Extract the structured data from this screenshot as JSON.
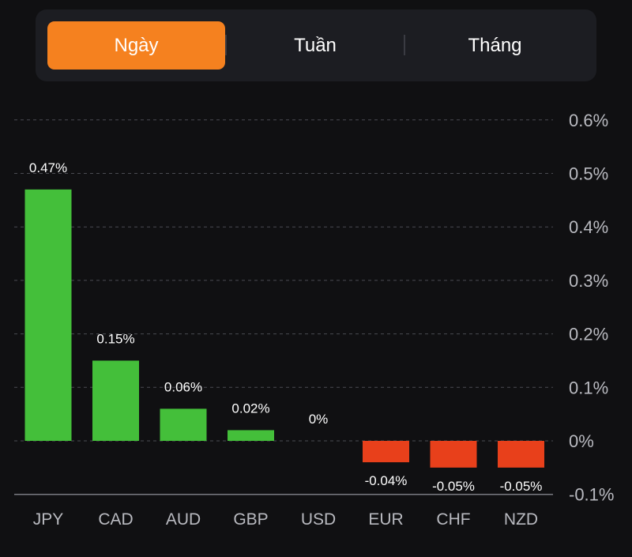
{
  "period_tabs": [
    {
      "label": "Ngày",
      "active": true
    },
    {
      "label": "Tuần",
      "active": false
    },
    {
      "label": "Tháng",
      "active": false
    }
  ],
  "colors": {
    "accent": "#f5811f",
    "positive": "#44bf3a",
    "negative": "#e8401b",
    "grid": "#4a4b52",
    "axis_text": "#b9bac0"
  },
  "chart_data": {
    "type": "bar",
    "categories": [
      "JPY",
      "CAD",
      "AUD",
      "GBP",
      "USD",
      "EUR",
      "CHF",
      "NZD"
    ],
    "values": [
      0.47,
      0.15,
      0.06,
      0.02,
      0,
      -0.04,
      -0.05,
      -0.05
    ],
    "value_labels": [
      "0.47%",
      "0.15%",
      "0.06%",
      "0.02%",
      "0%",
      "-0.04%",
      "-0.05%",
      "-0.05%"
    ],
    "y_ticks": [
      0.6,
      0.5,
      0.4,
      0.3,
      0.2,
      0.1,
      0,
      -0.1
    ],
    "y_tick_labels": [
      "0.6%",
      "0.5%",
      "0.4%",
      "0.3%",
      "0.2%",
      "0.1%",
      "0%",
      "-0.1%"
    ],
    "ylim": [
      -0.1,
      0.6
    ],
    "y_axis_position": "right",
    "grid": true
  }
}
